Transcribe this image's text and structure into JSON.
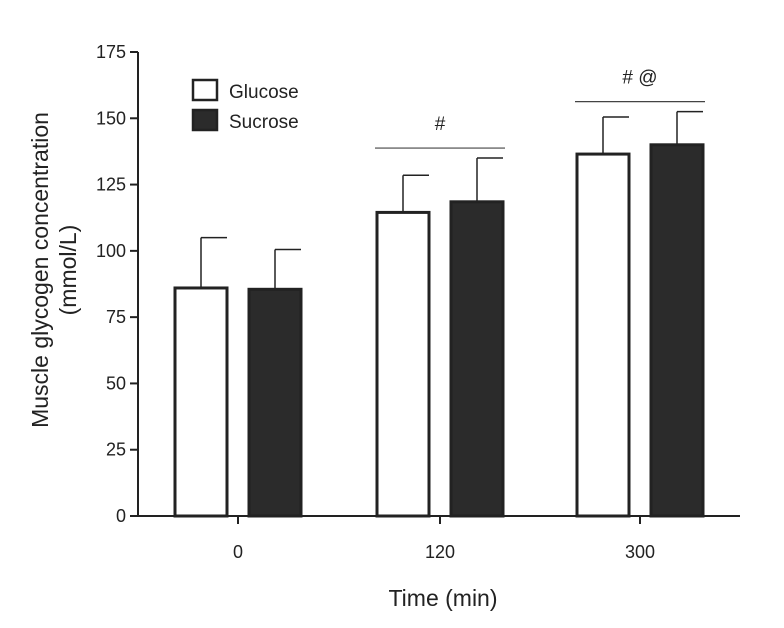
{
  "chart_data": {
    "type": "bar",
    "title": "",
    "xlabel": "Time (min)",
    "ylabel_lines": [
      "Muscle glycogen concentration",
      "(mmol/L)"
    ],
    "categories": [
      "0",
      "120",
      "300"
    ],
    "ylim": [
      0,
      175
    ],
    "yticks": [
      0,
      25,
      50,
      75,
      100,
      125,
      150,
      175
    ],
    "grid": false,
    "legend_position": "top-left",
    "series": [
      {
        "name": "Glucose",
        "fill": "#ffffff",
        "values": [
          86,
          114.5,
          136.5
        ],
        "errors": [
          19,
          14,
          14
        ]
      },
      {
        "name": "Sucrose",
        "fill": "#2b2b2b",
        "values": [
          85.5,
          118.5,
          140
        ],
        "errors": [
          15,
          16.5,
          12.5
        ]
      }
    ],
    "annotations": [
      {
        "text": "#",
        "category": "120",
        "bracket": true
      },
      {
        "text": "# @",
        "category": "300",
        "bracket": true
      }
    ]
  }
}
